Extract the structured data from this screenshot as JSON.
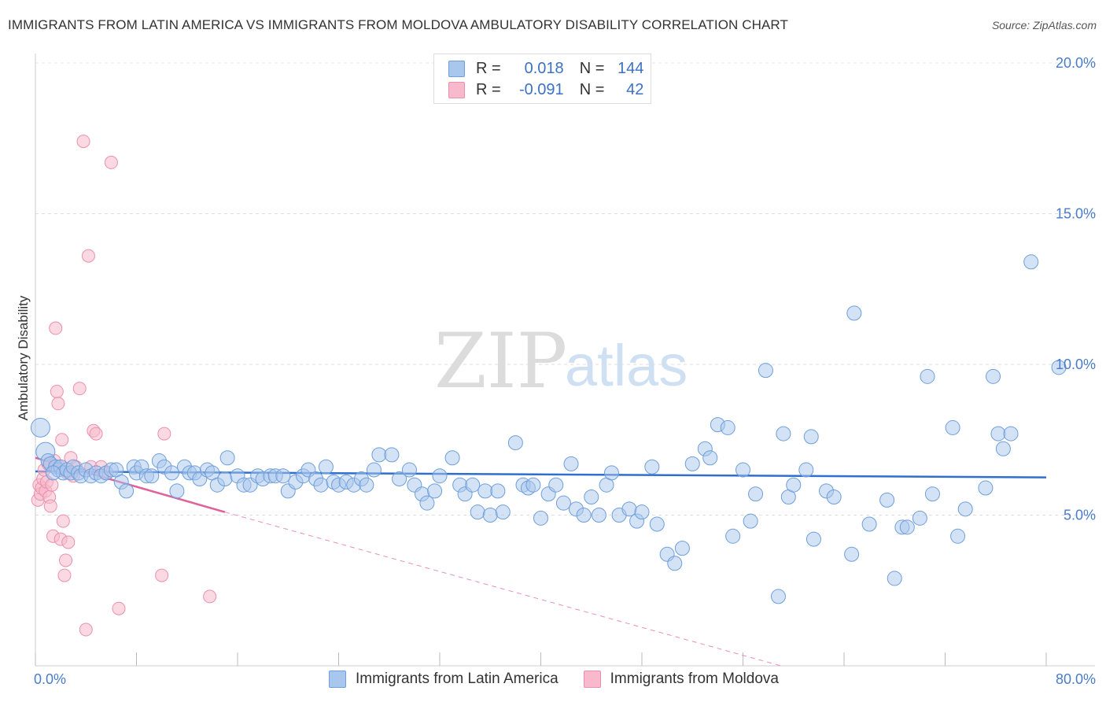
{
  "title": "IMMIGRANTS FROM LATIN AMERICA VS IMMIGRANTS FROM MOLDOVA AMBULATORY DISABILITY CORRELATION CHART",
  "source": "Source: ZipAtlas.com",
  "watermark": {
    "part1": "ZIP",
    "part2": "atlas"
  },
  "legend": {
    "r_label": "R =",
    "n_label": "N =",
    "rows": [
      {
        "r": "0.018",
        "n": "144"
      },
      {
        "r": "-0.091",
        "n": "42"
      }
    ]
  },
  "colors": {
    "blue_fill": "#a9c6ec",
    "blue_stroke": "#6d9fdc",
    "blue_line": "#2e6fcf",
    "pink_fill": "#f7b9cb",
    "pink_stroke": "#ec8fae",
    "pink_line": "#e0609a"
  },
  "chart_data": {
    "type": "scatter",
    "title": "IMMIGRANTS FROM LATIN AMERICA VS IMMIGRANTS FROM MOLDOVA AMBULATORY DISABILITY CORRELATION CHART",
    "xlabel": "",
    "ylabel": "Ambulatory Disability",
    "xlim": [
      0,
      80
    ],
    "ylim": [
      0,
      20
    ],
    "x_tick_labels": [
      "0.0%",
      "80.0%"
    ],
    "y_tick_labels": [
      "5.0%",
      "10.0%",
      "15.0%",
      "20.0%"
    ],
    "y_ticks": [
      5,
      10,
      15,
      20
    ],
    "grid": true,
    "series": [
      {
        "name": "Immigrants from Latin America",
        "r": 0.018,
        "n": 144,
        "trend": {
          "x": [
            0,
            80
          ],
          "y": [
            6.45,
            6.25
          ]
        },
        "points": [
          [
            0.4,
            7.9
          ],
          [
            0.8,
            7.1
          ],
          [
            1.0,
            6.8
          ],
          [
            1.2,
            6.7
          ],
          [
            1.6,
            6.6
          ],
          [
            1.8,
            6.5
          ],
          [
            2.0,
            6.6
          ],
          [
            2.2,
            6.4
          ],
          [
            2.5,
            6.5
          ],
          [
            2.8,
            6.4
          ],
          [
            3.0,
            6.6
          ],
          [
            3.4,
            6.4
          ],
          [
            3.6,
            6.3
          ],
          [
            4.0,
            6.5
          ],
          [
            4.4,
            6.3
          ],
          [
            4.8,
            6.4
          ],
          [
            5.2,
            6.3
          ],
          [
            5.6,
            6.4
          ],
          [
            6.0,
            6.5
          ],
          [
            6.4,
            6.5
          ],
          [
            6.8,
            6.1
          ],
          [
            7.2,
            5.8
          ],
          [
            7.8,
            6.6
          ],
          [
            8.0,
            6.4
          ],
          [
            8.4,
            6.6
          ],
          [
            8.8,
            6.3
          ],
          [
            9.2,
            6.3
          ],
          [
            9.8,
            6.8
          ],
          [
            10.2,
            6.6
          ],
          [
            10.8,
            6.4
          ],
          [
            11.2,
            5.8
          ],
          [
            11.8,
            6.6
          ],
          [
            12.2,
            6.4
          ],
          [
            12.6,
            6.4
          ],
          [
            13.0,
            6.2
          ],
          [
            13.6,
            6.5
          ],
          [
            14.0,
            6.4
          ],
          [
            14.4,
            6.0
          ],
          [
            15.0,
            6.2
          ],
          [
            15.2,
            6.9
          ],
          [
            16.0,
            6.3
          ],
          [
            16.5,
            6.0
          ],
          [
            17.0,
            6.0
          ],
          [
            17.6,
            6.3
          ],
          [
            18.0,
            6.2
          ],
          [
            18.6,
            6.3
          ],
          [
            19.0,
            6.3
          ],
          [
            19.6,
            6.3
          ],
          [
            20.0,
            5.8
          ],
          [
            20.6,
            6.1
          ],
          [
            21.2,
            6.3
          ],
          [
            21.6,
            6.5
          ],
          [
            22.2,
            6.2
          ],
          [
            22.6,
            6.0
          ],
          [
            23.0,
            6.6
          ],
          [
            23.6,
            6.1
          ],
          [
            24.0,
            6.0
          ],
          [
            24.6,
            6.1
          ],
          [
            25.2,
            6.0
          ],
          [
            25.8,
            6.2
          ],
          [
            26.2,
            6.0
          ],
          [
            26.8,
            6.5
          ],
          [
            27.2,
            7.0
          ],
          [
            28.2,
            7.0
          ],
          [
            28.8,
            6.2
          ],
          [
            29.6,
            6.5
          ],
          [
            30.0,
            6.0
          ],
          [
            30.6,
            5.7
          ],
          [
            31.0,
            5.4
          ],
          [
            31.6,
            5.8
          ],
          [
            32.0,
            6.3
          ],
          [
            33.0,
            6.9
          ],
          [
            33.6,
            6.0
          ],
          [
            34.0,
            5.7
          ],
          [
            34.6,
            6.0
          ],
          [
            35.0,
            5.1
          ],
          [
            35.6,
            5.8
          ],
          [
            36.0,
            5.0
          ],
          [
            36.6,
            5.8
          ],
          [
            37.0,
            5.1
          ],
          [
            38.0,
            7.4
          ],
          [
            38.6,
            6.0
          ],
          [
            39.0,
            5.9
          ],
          [
            39.4,
            6.0
          ],
          [
            40.0,
            4.9
          ],
          [
            40.6,
            5.7
          ],
          [
            41.2,
            6.0
          ],
          [
            41.8,
            5.4
          ],
          [
            42.4,
            6.7
          ],
          [
            42.8,
            5.2
          ],
          [
            43.4,
            5.0
          ],
          [
            44.0,
            5.6
          ],
          [
            44.6,
            5.0
          ],
          [
            45.2,
            6.0
          ],
          [
            45.6,
            6.4
          ],
          [
            46.2,
            5.0
          ],
          [
            47.0,
            5.2
          ],
          [
            47.6,
            4.8
          ],
          [
            48.0,
            5.1
          ],
          [
            48.8,
            6.6
          ],
          [
            49.2,
            4.7
          ],
          [
            50.0,
            3.7
          ],
          [
            50.6,
            3.4
          ],
          [
            51.2,
            3.9
          ],
          [
            52.0,
            6.7
          ],
          [
            53.0,
            7.2
          ],
          [
            53.4,
            6.9
          ],
          [
            54.0,
            8.0
          ],
          [
            54.8,
            7.9
          ],
          [
            55.2,
            4.3
          ],
          [
            56.0,
            6.5
          ],
          [
            56.6,
            4.8
          ],
          [
            57.0,
            5.7
          ],
          [
            57.8,
            9.8
          ],
          [
            58.8,
            2.3
          ],
          [
            59.2,
            7.7
          ],
          [
            59.6,
            5.6
          ],
          [
            60.0,
            6.0
          ],
          [
            61.0,
            6.5
          ],
          [
            61.4,
            7.6
          ],
          [
            61.6,
            4.2
          ],
          [
            62.6,
            5.8
          ],
          [
            63.2,
            5.6
          ],
          [
            64.6,
            3.7
          ],
          [
            64.8,
            11.7
          ],
          [
            66.0,
            4.7
          ],
          [
            67.4,
            5.5
          ],
          [
            68.0,
            2.9
          ],
          [
            68.6,
            4.6
          ],
          [
            69.0,
            4.6
          ],
          [
            70.0,
            4.9
          ],
          [
            70.6,
            9.6
          ],
          [
            71.0,
            5.7
          ],
          [
            72.6,
            7.9
          ],
          [
            73.0,
            4.3
          ],
          [
            73.6,
            5.2
          ],
          [
            75.2,
            5.9
          ],
          [
            75.8,
            9.6
          ],
          [
            76.2,
            7.7
          ],
          [
            76.6,
            7.2
          ],
          [
            77.2,
            7.7
          ],
          [
            78.8,
            13.4
          ],
          [
            81.0,
            9.9
          ],
          [
            1.4,
            6.4
          ]
        ]
      },
      {
        "name": "Immigrants from Moldova",
        "r": -0.091,
        "n": 42,
        "trend": {
          "x": [
            0,
            15
          ],
          "y": [
            6.9,
            5.1
          ]
        },
        "trend_extension": {
          "x": [
            15,
            59
          ],
          "y": [
            5.1,
            0
          ]
        },
        "points": [
          [
            0.2,
            5.5
          ],
          [
            0.3,
            6.0
          ],
          [
            0.4,
            5.7
          ],
          [
            0.5,
            5.9
          ],
          [
            0.6,
            6.2
          ],
          [
            0.7,
            6.5
          ],
          [
            0.8,
            5.8
          ],
          [
            0.9,
            6.1
          ],
          [
            1.0,
            6.7
          ],
          [
            1.1,
            5.6
          ],
          [
            1.2,
            5.3
          ],
          [
            1.3,
            6.0
          ],
          [
            1.4,
            4.3
          ],
          [
            1.5,
            6.8
          ],
          [
            1.6,
            11.2
          ],
          [
            1.7,
            9.1
          ],
          [
            1.8,
            8.7
          ],
          [
            1.9,
            6.6
          ],
          [
            2.0,
            4.2
          ],
          [
            2.1,
            7.5
          ],
          [
            2.2,
            4.8
          ],
          [
            2.3,
            3.0
          ],
          [
            2.4,
            3.5
          ],
          [
            2.5,
            6.4
          ],
          [
            2.6,
            4.1
          ],
          [
            2.8,
            6.9
          ],
          [
            3.0,
            6.3
          ],
          [
            3.2,
            6.6
          ],
          [
            3.5,
            9.2
          ],
          [
            3.8,
            17.4
          ],
          [
            4.0,
            1.2
          ],
          [
            4.2,
            13.6
          ],
          [
            4.4,
            6.6
          ],
          [
            4.6,
            7.8
          ],
          [
            4.8,
            7.7
          ],
          [
            5.2,
            6.6
          ],
          [
            5.5,
            6.4
          ],
          [
            6.0,
            16.7
          ],
          [
            6.6,
            1.9
          ],
          [
            10.0,
            3.0
          ],
          [
            10.2,
            7.7
          ],
          [
            13.8,
            2.3
          ]
        ]
      }
    ]
  }
}
